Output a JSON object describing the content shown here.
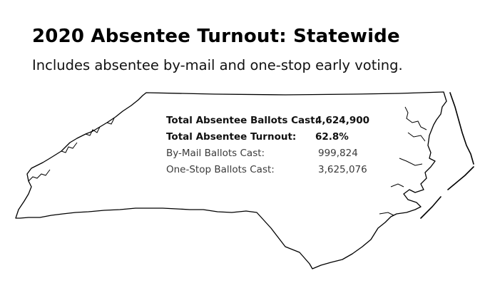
{
  "title": "2020 Absentee Turnout: Statewide",
  "subtitle": "Includes absentee by-mail and one-stop early voting.",
  "map_outline_color": "#000000",
  "stats": [
    {
      "label": "Total Absentee Ballots Cast:",
      "value": "4,624,900"
    },
    {
      "label": "Total Absentee Turnout:",
      "value": "62.8%"
    },
    {
      "label": "By-Mail Ballots Cast:",
      "value": "999,824"
    },
    {
      "label": "One-Stop Ballots Cast:",
      "value": "3,625,076"
    }
  ]
}
